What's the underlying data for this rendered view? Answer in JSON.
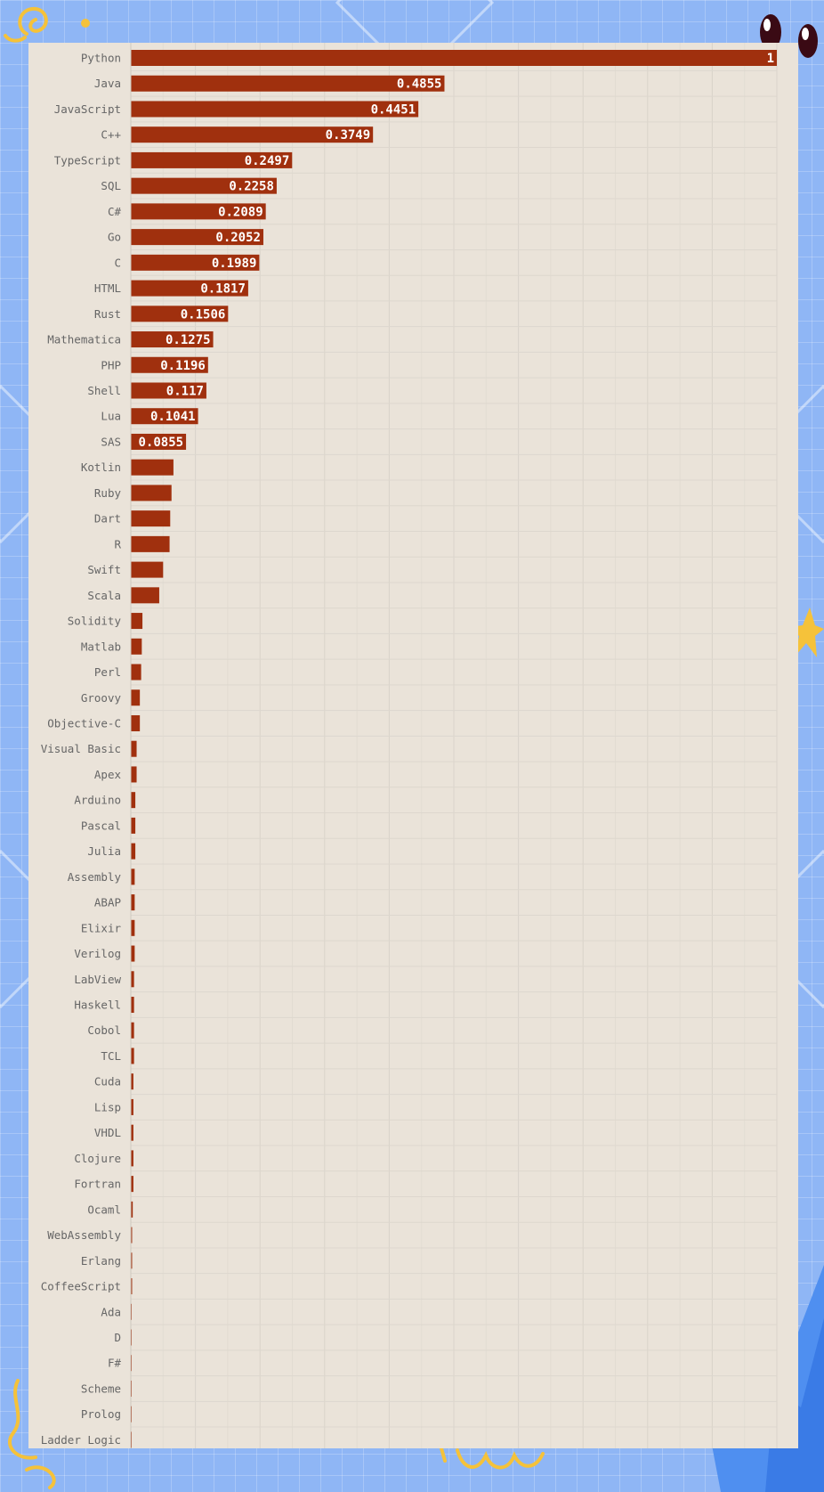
{
  "chart_data": {
    "type": "bar",
    "orientation": "horizontal",
    "categories": [
      "Python",
      "Java",
      "JavaScript",
      "C++",
      "TypeScript",
      "SQL",
      "C#",
      "Go",
      "C",
      "HTML",
      "Rust",
      "Mathematica",
      "PHP",
      "Shell",
      "Lua",
      "SAS",
      "Kotlin",
      "Ruby",
      "Dart",
      "R",
      "Swift",
      "Scala",
      "Solidity",
      "Matlab",
      "Perl",
      "Groovy",
      "Objective-C",
      "Visual Basic",
      "Apex",
      "Arduino",
      "Pascal",
      "Julia",
      "Assembly",
      "ABAP",
      "Elixir",
      "Verilog",
      "LabView",
      "Haskell",
      "Cobol",
      "TCL",
      "Cuda",
      "Lisp",
      "VHDL",
      "Clojure",
      "Fortran",
      "Ocaml",
      "WebAssembly",
      "Erlang",
      "CoffeeScript",
      "Ada",
      "D",
      "F#",
      "Scheme",
      "Prolog",
      "Ladder Logic"
    ],
    "values": [
      1,
      0.4855,
      0.4451,
      0.3749,
      0.2497,
      0.2258,
      0.2089,
      0.2052,
      0.1989,
      0.1817,
      0.1506,
      0.1275,
      0.1196,
      0.117,
      0.1041,
      0.0855,
      0.066,
      0.063,
      0.061,
      0.06,
      0.05,
      0.044,
      0.018,
      0.017,
      0.016,
      0.014,
      0.014,
      0.009,
      0.009,
      0.007,
      0.007,
      0.007,
      0.006,
      0.006,
      0.006,
      0.006,
      0.005,
      0.005,
      0.005,
      0.005,
      0.004,
      0.004,
      0.004,
      0.004,
      0.004,
      0.003,
      0.002,
      0.002,
      0.002,
      0.001,
      0.001,
      0.001,
      0.001,
      0.001,
      0.001
    ],
    "value_labels": [
      "1",
      "0.4855",
      "0.4451",
      "0.3749",
      "0.2497",
      "0.2258",
      "0.2089",
      "0.2052",
      "0.1989",
      "0.1817",
      "0.1506",
      "0.1275",
      "0.1196",
      "0.117",
      "0.1041",
      "0.0855",
      "",
      "",
      "",
      "",
      "",
      "",
      "",
      "",
      "",
      "",
      "",
      "",
      "",
      "",
      "",
      "",
      "",
      "",
      "",
      "",
      "",
      "",
      "",
      "",
      "",
      "",
      "",
      "",
      "",
      "",
      "",
      "",
      "",
      "",
      "",
      "",
      "",
      "",
      ""
    ],
    "xlim": [
      0,
      1
    ],
    "grid": true,
    "legend": "none",
    "bar_color": "#a0300e",
    "title": "",
    "xlabel": "",
    "ylabel": ""
  }
}
